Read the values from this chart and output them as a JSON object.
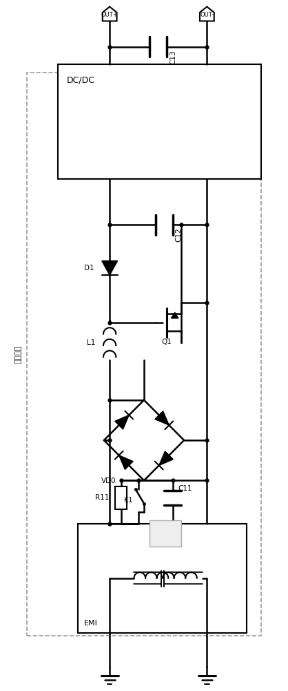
{
  "bg_color": "#ffffff",
  "line_color": "#000000",
  "fig_width": 4.18,
  "fig_height": 10.0,
  "labels": {
    "DC_DC": "DC/DC",
    "EMI": "EMI",
    "OUT_P": "OUT+",
    "OUT_M": "OUT-",
    "C13": "C13",
    "C12": "C12",
    "C11": "C11",
    "D1": "D1",
    "Q1": "Q1",
    "L1": "L1",
    "VD0": "VD0",
    "R11": "R11",
    "K1": "K1",
    "AC_module": "交流模块"
  }
}
